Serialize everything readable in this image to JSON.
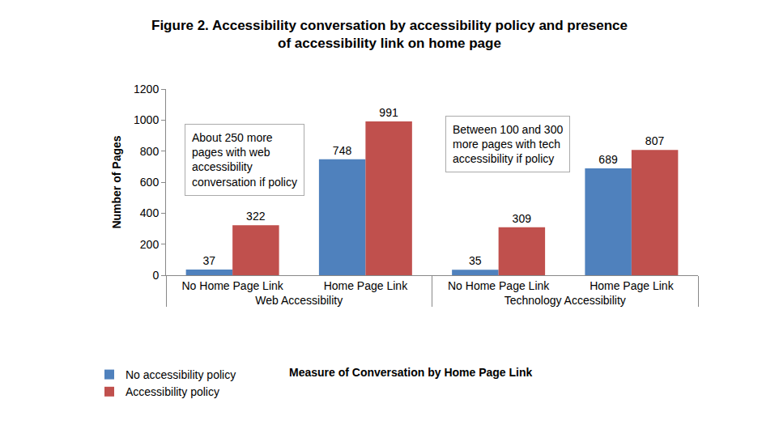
{
  "chart_data": {
    "type": "bar",
    "title": "Figure 2. Accessibility conversation by accessibility policy and presence\nof accessibility link on home page",
    "y_label": "Number of Pages",
    "x_label": "Measure of Conversation by Home Page Link",
    "categories": [
      "No Home Page Link",
      "Home Page Link",
      "No Home Page Link",
      "Home Page Link"
    ],
    "category_groups": [
      "Web Accessibility",
      "Web Accessibility",
      "Technology Accessibility",
      "Technology Accessibility"
    ],
    "series": [
      {
        "name": "No accessibility policy",
        "color": "#4f81bd",
        "values": [
          37,
          748,
          35,
          689
        ]
      },
      {
        "name": "Accessibility policy",
        "color": "#c0504d",
        "values": [
          322,
          991,
          309,
          807
        ]
      }
    ],
    "annotations": [
      "About 250 more\npages with web\naccessibility\nconversation if policy",
      "Between 100 and 300\nmore pages with tech\naccessibility if policy"
    ],
    "ylim": [
      0,
      1200
    ],
    "yticks": [
      0,
      200,
      400,
      600,
      800,
      1000,
      1200
    ],
    "grid": false,
    "legend": "bottom-left",
    "data_labels": true
  }
}
